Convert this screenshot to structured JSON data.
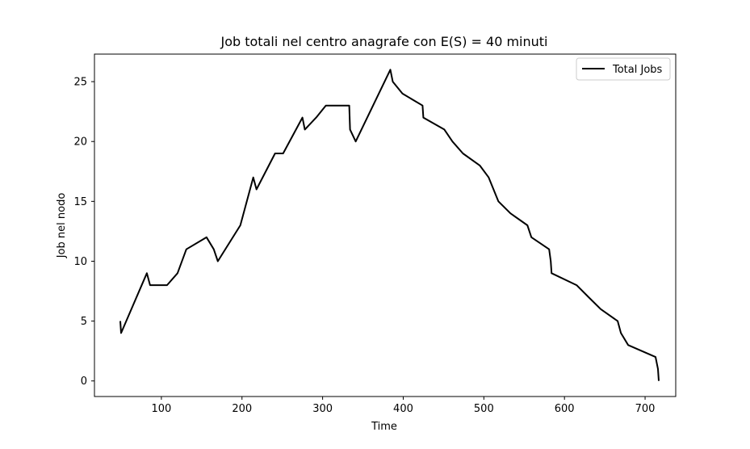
{
  "chart_data": {
    "type": "line",
    "title": "Job totali nel centro anagrafe con E(S) = 40 minuti",
    "xlabel": "Time",
    "ylabel": "Job nel nodo",
    "xlim": [
      17,
      738
    ],
    "ylim": [
      -1.3,
      27.3
    ],
    "xticks": [
      100,
      200,
      300,
      400,
      500,
      600,
      700
    ],
    "yticks": [
      0,
      5,
      10,
      15,
      20,
      25
    ],
    "grid": false,
    "legend_position": "top-right",
    "series": [
      {
        "name": "Total Jobs",
        "color": "#000000",
        "points": [
          [
            49,
            5
          ],
          [
            50,
            4
          ],
          [
            82,
            9
          ],
          [
            86,
            8
          ],
          [
            107,
            8
          ],
          [
            120,
            9
          ],
          [
            131,
            11
          ],
          [
            156,
            12
          ],
          [
            165,
            11
          ],
          [
            170,
            10
          ],
          [
            198,
            13
          ],
          [
            214,
            17
          ],
          [
            218,
            16
          ],
          [
            241,
            19
          ],
          [
            251,
            19
          ],
          [
            275,
            22
          ],
          [
            278,
            21
          ],
          [
            292,
            22
          ],
          [
            304,
            23
          ],
          [
            330,
            23
          ],
          [
            333,
            23
          ],
          [
            334,
            21
          ],
          [
            341,
            20
          ],
          [
            384,
            26
          ],
          [
            387,
            25
          ],
          [
            399,
            24
          ],
          [
            424,
            23
          ],
          [
            425,
            22
          ],
          [
            451,
            21
          ],
          [
            461,
            20
          ],
          [
            474,
            19
          ],
          [
            495,
            18
          ],
          [
            506,
            17
          ],
          [
            518,
            15
          ],
          [
            533,
            14
          ],
          [
            554,
            13
          ],
          [
            559,
            12
          ],
          [
            581,
            11
          ],
          [
            583,
            10
          ],
          [
            584,
            9
          ],
          [
            615,
            8
          ],
          [
            630,
            7
          ],
          [
            645,
            6
          ],
          [
            666,
            5
          ],
          [
            670,
            4
          ],
          [
            679,
            3
          ],
          [
            713,
            2
          ],
          [
            716,
            1
          ],
          [
            717,
            0
          ]
        ]
      }
    ]
  }
}
